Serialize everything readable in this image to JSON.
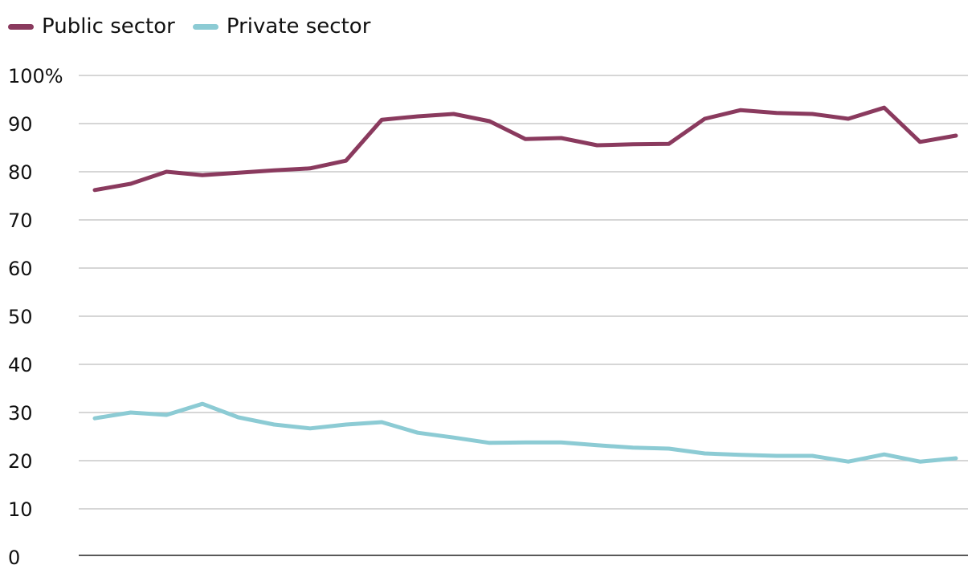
{
  "chart_data": {
    "type": "line",
    "title": "",
    "xlabel": "",
    "ylabel": "",
    "ylim": [
      0,
      100
    ],
    "yticks": [
      "0",
      "10",
      "20",
      "30",
      "40",
      "50",
      "60",
      "70",
      "80",
      "90",
      "100%"
    ],
    "grid": "horizontal",
    "legend_placement": "top-left",
    "series": [
      {
        "name": "Public sector",
        "color": "#8a3a5e",
        "values": [
          76.2,
          77.5,
          80,
          79.3,
          79.8,
          80.3,
          80.7,
          82.3,
          90.8,
          91.5,
          92,
          90.5,
          86.8,
          87,
          85.5,
          85.7,
          85.8,
          91,
          92.8,
          92.2,
          92,
          91,
          93.3,
          86.2,
          87.5
        ]
      },
      {
        "name": "Private sector",
        "color": "#8ccbd4",
        "values": [
          28.8,
          30,
          29.5,
          31.8,
          29,
          27.5,
          26.7,
          27.5,
          28,
          25.8,
          24.8,
          23.7,
          23.8,
          23.8,
          23.2,
          22.7,
          22.5,
          21.5,
          21.2,
          21,
          21,
          19.8,
          21.3,
          19.8,
          20.5
        ]
      }
    ]
  }
}
